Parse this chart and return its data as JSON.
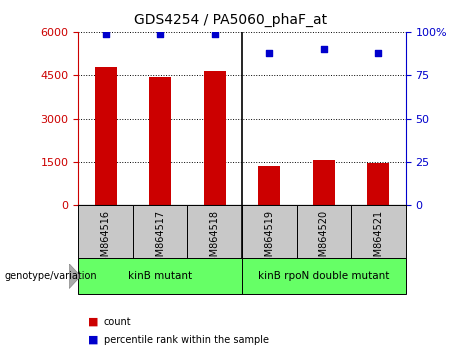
{
  "title": "GDS4254 / PA5060_phaF_at",
  "samples": [
    "GSM864516",
    "GSM864517",
    "GSM864518",
    "GSM864519",
    "GSM864520",
    "GSM864521"
  ],
  "counts": [
    4800,
    4450,
    4650,
    1350,
    1580,
    1450
  ],
  "percentiles": [
    99,
    99,
    99,
    88,
    90,
    88
  ],
  "bar_color": "#cc0000",
  "dot_color": "#0000cc",
  "groups": [
    {
      "label": "kinB mutant",
      "start": 0,
      "end": 3
    },
    {
      "label": "kinB rpoN double mutant",
      "start": 3,
      "end": 6
    }
  ],
  "group_color": "#66ff66",
  "group_label": "genotype/variation",
  "yticks_left": [
    0,
    1500,
    3000,
    4500,
    6000
  ],
  "yticks_right": [
    0,
    25,
    50,
    75,
    100
  ],
  "ylim_left": [
    0,
    6000
  ],
  "ylim_right": [
    0,
    100
  ],
  "legend_count_label": "count",
  "legend_percentile_label": "percentile rank within the sample",
  "plot_bg": "#ffffff",
  "sample_box_color": "#c8c8c8",
  "bar_width": 0.4
}
